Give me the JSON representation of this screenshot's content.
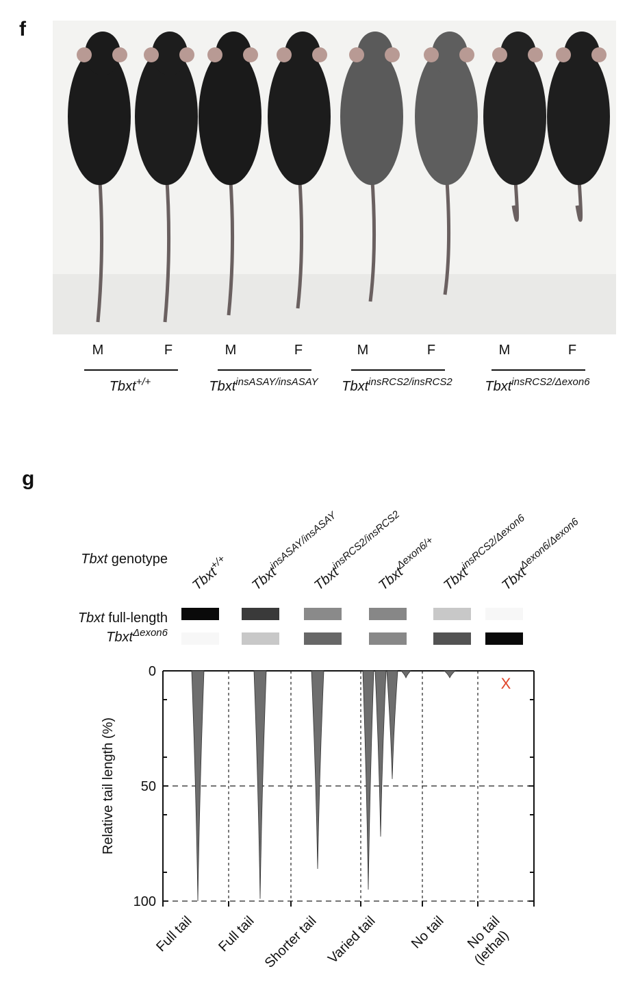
{
  "panel_f": {
    "label": "f",
    "groups": [
      {
        "gene": "Tbxt",
        "allele": "+/+",
        "sexes": [
          "M",
          "F"
        ]
      },
      {
        "gene": "Tbxt",
        "allele": "insASAY/insASAY",
        "sexes": [
          "M",
          "F"
        ]
      },
      {
        "gene": "Tbxt",
        "allele": "insRCS2/insRCS2",
        "sexes": [
          "M",
          "F"
        ]
      },
      {
        "gene": "Tbxt",
        "allele": "insRCS2/Δexon6",
        "sexes": [
          "M",
          "F"
        ]
      }
    ]
  },
  "chart_data": {
    "type": "tail",
    "panel_label": "g",
    "genotype_row": {
      "gene": "Tbxt",
      "text": " genotype"
    },
    "full_length_row": {
      "gene": "Tbxt",
      "text": " full-length"
    },
    "delta_row": {
      "gene": "Tbxt",
      "allele": "Δexon6"
    },
    "genotypes": [
      {
        "gene": "Tbxt",
        "allele": "+/+"
      },
      {
        "gene": "Tbxt",
        "allele": "insASAY/insASAY"
      },
      {
        "gene": "Tbxt",
        "allele": "insRCS2/insRCS2"
      },
      {
        "gene": "Tbxt",
        "allele": "Δexon6/+"
      },
      {
        "gene": "Tbxt",
        "allele": "insRCS2/Δexon6"
      },
      {
        "gene": "Tbxt",
        "allele": "Δexon6/Δexon6"
      }
    ],
    "full_length_colors": [
      "#0a0a0a",
      "#3a3a3a",
      "#8a8a8a",
      "#878787",
      "#c8c8c8",
      "#f7f7f7"
    ],
    "delta_colors": [
      "#f7f7f7",
      "#c8c8c8",
      "#676767",
      "#888888",
      "#535353",
      "#0a0a0a"
    ],
    "categories": [
      [
        "Full tail"
      ],
      [
        "Full tail"
      ],
      [
        "Shorter tail"
      ],
      [
        "Varied tail"
      ],
      [
        "No tail"
      ],
      [
        "No tail",
        "(lethal)"
      ]
    ],
    "tails": [
      {
        "values": [
          100
        ]
      },
      {
        "values": [
          99
        ]
      },
      {
        "values": [
          86
        ]
      },
      {
        "values": [
          95,
          72,
          47,
          3
        ]
      },
      {
        "values": [
          3
        ]
      },
      {
        "values": null
      }
    ],
    "tail_color": "#6e6e6e",
    "lethal_mark": "X",
    "lethal_color": "#e0452a",
    "ylabel": "Relative tail length (%)",
    "ylim": [
      0,
      100
    ],
    "yticks": [
      0,
      50,
      100
    ],
    "minor_yticks": [
      12.5,
      37.5,
      62.5,
      87.5
    ],
    "inverted": true
  }
}
